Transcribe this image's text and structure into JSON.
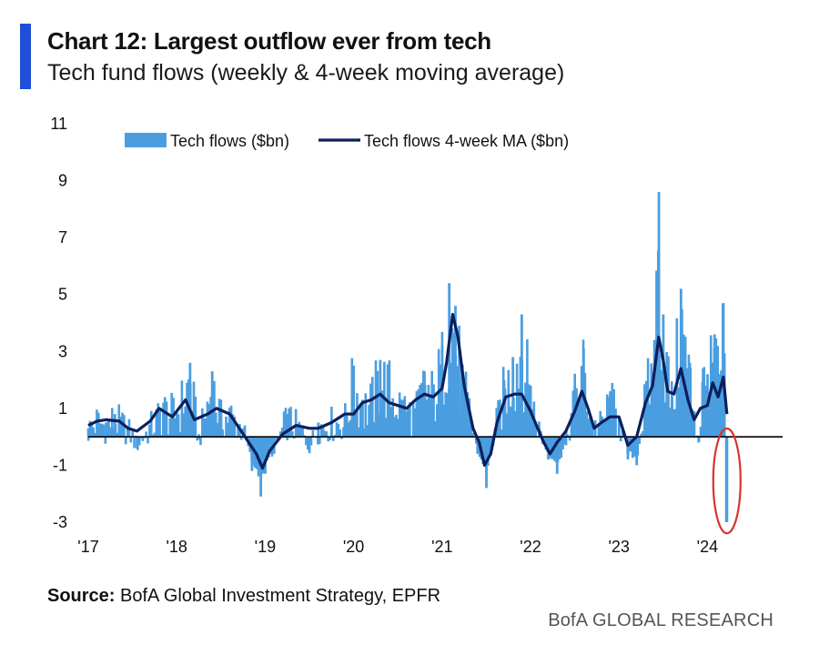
{
  "header": {
    "title": "Chart 12: Largest outflow ever from tech",
    "subtitle": "Tech fund flows (weekly & 4-week moving average)"
  },
  "footer": {
    "source_label": "Source:",
    "source_text": "BofA Global Investment Strategy, EPFR",
    "watermark": "BofA GLOBAL RESEARCH"
  },
  "colors": {
    "bars": "#4a9ee0",
    "ma_line": "#0b1f5c",
    "accent": "#1f4fd8",
    "highlight_circle": "#d9342b"
  },
  "chart_data": {
    "type": "bar",
    "title": "Chart 12: Largest outflow ever from tech",
    "subtitle": "Tech fund flows (weekly & 4-week moving average)",
    "xlabel": "",
    "ylabel": "",
    "ylim": [
      -3,
      11
    ],
    "yticks": [
      -3,
      -1,
      1,
      3,
      5,
      7,
      9,
      11
    ],
    "xticks": [
      "'17",
      "'18",
      "'19",
      "'20",
      "'21",
      "'22",
      "'23",
      "'24"
    ],
    "x_start_year": 2017,
    "legend": {
      "placement": "top",
      "entries": [
        "Tech flows ($bn)",
        "Tech flows 4-week MA ($bn)"
      ]
    },
    "annotation": "red ellipse highlighting latest weekly outflow (~-3.0)",
    "series": [
      {
        "name": "Tech flows ($bn)",
        "kind": "bar",
        "anchors": [
          [
            2017.0,
            0.3
          ],
          [
            2017.1,
            0.7
          ],
          [
            2017.2,
            0.5
          ],
          [
            2017.3,
            0.8
          ],
          [
            2017.45,
            0.3
          ],
          [
            2017.55,
            -0.4
          ],
          [
            2017.7,
            0.4
          ],
          [
            2017.85,
            1.2
          ],
          [
            2018.0,
            0.9
          ],
          [
            2018.15,
            2.6
          ],
          [
            2018.25,
            -0.1
          ],
          [
            2018.4,
            2.3
          ],
          [
            2018.5,
            0.8
          ],
          [
            2018.6,
            1.0
          ],
          [
            2018.75,
            0.3
          ],
          [
            2018.85,
            -1.2
          ],
          [
            2018.95,
            -2.1
          ],
          [
            2019.0,
            -1.3
          ],
          [
            2019.1,
            -0.6
          ],
          [
            2019.25,
            0.8
          ],
          [
            2019.4,
            0.3
          ],
          [
            2019.5,
            -0.5
          ],
          [
            2019.6,
            0.5
          ],
          [
            2019.75,
            0.6
          ],
          [
            2019.9,
            0.7
          ],
          [
            2020.0,
            2.5
          ],
          [
            2020.1,
            1.3
          ],
          [
            2020.2,
            1.5
          ],
          [
            2020.3,
            2.7
          ],
          [
            2020.4,
            2.2
          ],
          [
            2020.55,
            1.3
          ],
          [
            2020.7,
            1.0
          ],
          [
            2020.8,
            2.3
          ],
          [
            2020.9,
            1.8
          ],
          [
            2021.0,
            3.2
          ],
          [
            2021.08,
            5.4
          ],
          [
            2021.15,
            4.6
          ],
          [
            2021.22,
            2.5
          ],
          [
            2021.3,
            1.2
          ],
          [
            2021.4,
            -0.6
          ],
          [
            2021.5,
            -1.8
          ],
          [
            2021.6,
            0.3
          ],
          [
            2021.7,
            2.0
          ],
          [
            2021.8,
            2.8
          ],
          [
            2021.9,
            4.3
          ],
          [
            2022.0,
            1.8
          ],
          [
            2022.1,
            0.3
          ],
          [
            2022.2,
            -0.8
          ],
          [
            2022.3,
            -1.3
          ],
          [
            2022.4,
            -0.3
          ],
          [
            2022.5,
            1.8
          ],
          [
            2022.6,
            3.1
          ],
          [
            2022.7,
            0.4
          ],
          [
            2022.8,
            0.5
          ],
          [
            2022.9,
            1.6
          ],
          [
            2023.0,
            0.7
          ],
          [
            2023.1,
            -0.8
          ],
          [
            2023.2,
            -1.0
          ],
          [
            2023.3,
            1.7
          ],
          [
            2023.4,
            3.4
          ],
          [
            2023.45,
            8.6
          ],
          [
            2023.5,
            4.3
          ],
          [
            2023.6,
            1.4
          ],
          [
            2023.7,
            5.2
          ],
          [
            2023.8,
            2.6
          ],
          [
            2023.85,
            0.9
          ],
          [
            2023.9,
            -0.2
          ],
          [
            2023.95,
            2.4
          ],
          [
            2024.0,
            2.2
          ],
          [
            2024.08,
            3.6
          ],
          [
            2024.14,
            2.2
          ],
          [
            2024.18,
            4.7
          ],
          [
            2024.22,
            -3.0
          ]
        ]
      },
      {
        "name": "Tech flows 4-week MA ($bn)",
        "kind": "line",
        "anchors": [
          [
            2017.0,
            0.4
          ],
          [
            2017.1,
            0.55
          ],
          [
            2017.2,
            0.6
          ],
          [
            2017.35,
            0.55
          ],
          [
            2017.45,
            0.3
          ],
          [
            2017.55,
            0.2
          ],
          [
            2017.7,
            0.55
          ],
          [
            2017.8,
            1.0
          ],
          [
            2017.95,
            0.7
          ],
          [
            2018.0,
            0.9
          ],
          [
            2018.1,
            1.3
          ],
          [
            2018.2,
            0.6
          ],
          [
            2018.35,
            0.8
          ],
          [
            2018.45,
            1.0
          ],
          [
            2018.6,
            0.8
          ],
          [
            2018.75,
            0.1
          ],
          [
            2018.9,
            -0.6
          ],
          [
            2018.97,
            -1.1
          ],
          [
            2019.05,
            -0.5
          ],
          [
            2019.2,
            0.1
          ],
          [
            2019.35,
            0.4
          ],
          [
            2019.5,
            0.3
          ],
          [
            2019.6,
            0.3
          ],
          [
            2019.75,
            0.5
          ],
          [
            2019.9,
            0.8
          ],
          [
            2020.0,
            0.8
          ],
          [
            2020.1,
            1.2
          ],
          [
            2020.2,
            1.3
          ],
          [
            2020.3,
            1.5
          ],
          [
            2020.4,
            1.2
          ],
          [
            2020.5,
            1.1
          ],
          [
            2020.6,
            1.0
          ],
          [
            2020.7,
            1.3
          ],
          [
            2020.8,
            1.5
          ],
          [
            2020.9,
            1.4
          ],
          [
            2021.0,
            1.7
          ],
          [
            2021.05,
            2.6
          ],
          [
            2021.12,
            4.3
          ],
          [
            2021.18,
            3.5
          ],
          [
            2021.25,
            1.8
          ],
          [
            2021.35,
            0.3
          ],
          [
            2021.42,
            -0.2
          ],
          [
            2021.48,
            -1.0
          ],
          [
            2021.55,
            -0.6
          ],
          [
            2021.62,
            0.5
          ],
          [
            2021.72,
            1.4
          ],
          [
            2021.82,
            1.5
          ],
          [
            2021.9,
            1.5
          ],
          [
            2022.0,
            0.9
          ],
          [
            2022.08,
            0.3
          ],
          [
            2022.15,
            -0.2
          ],
          [
            2022.22,
            -0.6
          ],
          [
            2022.3,
            -0.2
          ],
          [
            2022.4,
            0.2
          ],
          [
            2022.5,
            0.9
          ],
          [
            2022.58,
            1.6
          ],
          [
            2022.65,
            1.0
          ],
          [
            2022.72,
            0.3
          ],
          [
            2022.8,
            0.5
          ],
          [
            2022.9,
            0.7
          ],
          [
            2023.0,
            0.7
          ],
          [
            2023.05,
            0.2
          ],
          [
            2023.1,
            -0.3
          ],
          [
            2023.2,
            0.0
          ],
          [
            2023.3,
            1.2
          ],
          [
            2023.38,
            1.8
          ],
          [
            2023.45,
            3.5
          ],
          [
            2023.5,
            2.7
          ],
          [
            2023.55,
            1.6
          ],
          [
            2023.62,
            1.5
          ],
          [
            2023.7,
            2.4
          ],
          [
            2023.78,
            1.3
          ],
          [
            2023.85,
            0.6
          ],
          [
            2023.92,
            1.0
          ],
          [
            2024.0,
            1.1
          ],
          [
            2024.06,
            1.9
          ],
          [
            2024.12,
            1.4
          ],
          [
            2024.18,
            2.1
          ],
          [
            2024.22,
            0.8
          ]
        ]
      }
    ]
  }
}
